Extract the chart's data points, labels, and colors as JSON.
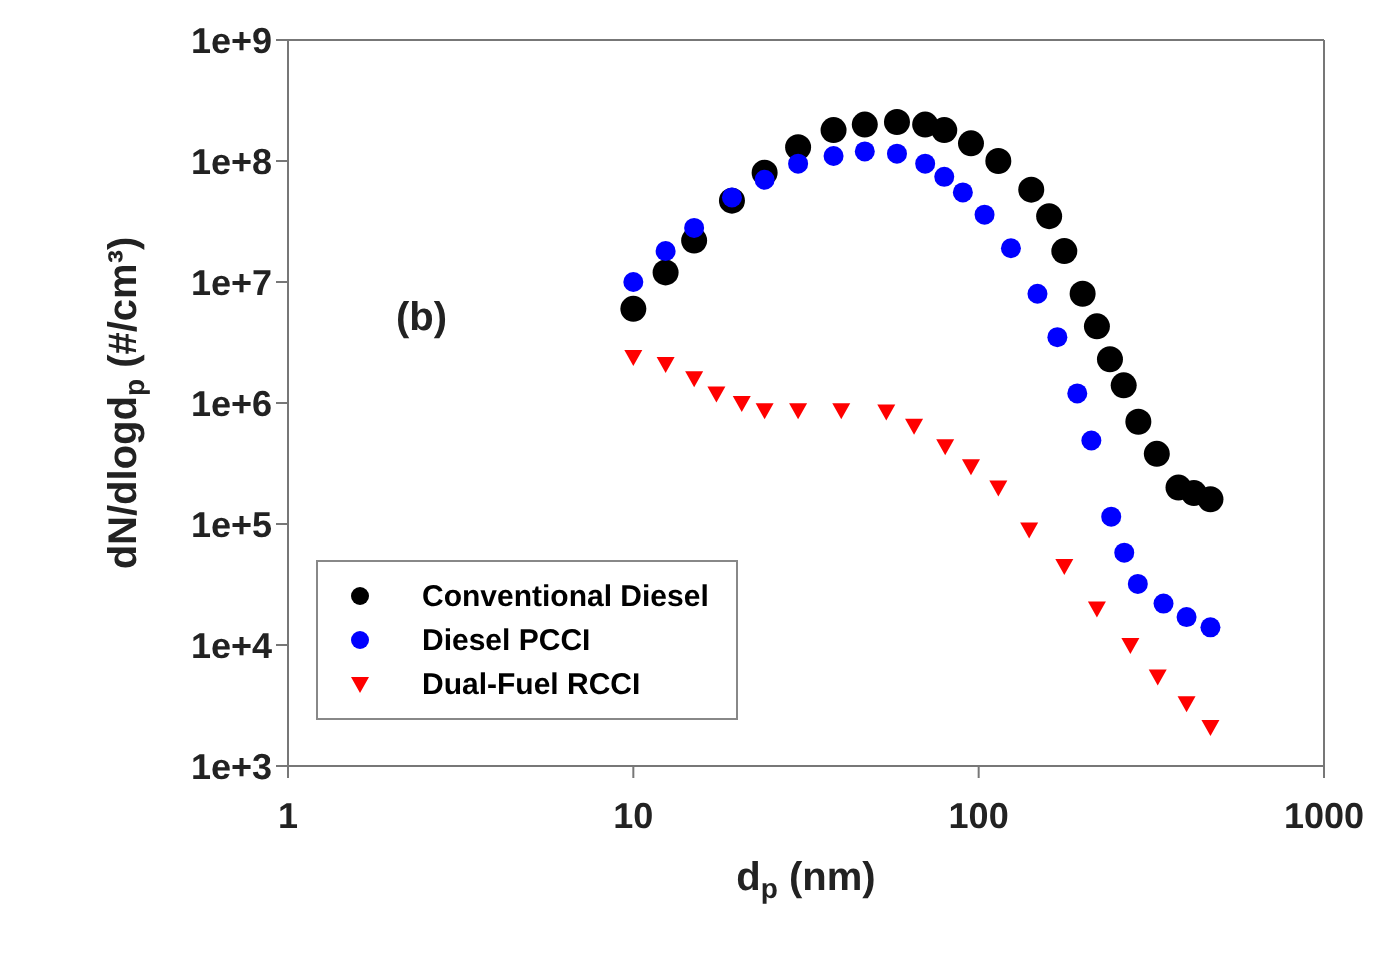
{
  "chart_data": {
    "type": "scatter",
    "xlabel": "d$_{p}$ (nm)",
    "ylabel": "dN/dlogd$_{p}$ (#/cm³)",
    "annotations": [
      "(b)"
    ],
    "log": "xy",
    "xlim": [
      1,
      1000
    ],
    "xticks": [
      1,
      10,
      100,
      1000
    ],
    "ylim": [
      1000,
      1000000000
    ],
    "yticks": [
      {
        "value": 1000,
        "label": "1e+3"
      },
      {
        "value": 10000,
        "label": "1e+4"
      },
      {
        "value": 100000,
        "label": "1e+5"
      },
      {
        "value": 1000000,
        "label": "1e+6"
      },
      {
        "value": 10000000,
        "label": "1e+7"
      },
      {
        "value": 100000000,
        "label": "1e+8"
      },
      {
        "value": 1000000000,
        "label": "1e+9"
      }
    ],
    "grid": false,
    "legend": "bottom left",
    "series": [
      {
        "name": "Conventional Diesel",
        "color": "#000000",
        "marker": "circle",
        "x": [
          10,
          12.4,
          15,
          19.3,
          24,
          30,
          38,
          46.8,
          58,
          70,
          79.5,
          95,
          114,
          142,
          160,
          177,
          200,
          220,
          240,
          263,
          290,
          328,
          379,
          420,
          469
        ],
        "values": [
          6000000,
          12000000,
          22000000,
          47000000,
          80000000,
          130000000,
          180000000,
          200000000,
          210000000,
          200000000,
          180000000,
          140000000,
          100000000,
          58000000,
          35000000,
          18000000,
          8000000,
          4300000,
          2300000,
          1400000,
          700000,
          380000,
          200000,
          180000,
          160000
        ]
      },
      {
        "name": "Diesel PCCI",
        "color": "#0000ff",
        "marker": "circle",
        "x": [
          10,
          12.4,
          15,
          19.3,
          24,
          30,
          38,
          46.8,
          58,
          70,
          79.5,
          90,
          104,
          124,
          148,
          169,
          193,
          212,
          242,
          264,
          289,
          343,
          400,
          469
        ],
        "values": [
          10000000,
          18000000,
          28000000,
          50000000,
          70000000,
          95000000,
          110000000,
          120000000,
          115000000,
          95000000,
          74000000,
          55000000,
          36000000,
          19000000,
          8000000,
          3500000,
          1200000,
          490000,
          115000,
          58000,
          32000,
          22000,
          17000,
          14000
        ]
      },
      {
        "name": "Dual-Fuel RCCI",
        "color": "#ff0000",
        "marker": "triangle",
        "x": [
          10,
          12.4,
          15,
          17.4,
          20.6,
          24,
          30,
          40,
          54,
          65,
          80,
          95,
          114,
          140,
          177,
          220,
          275,
          330,
          400,
          469
        ],
        "values": [
          2400000,
          2100000,
          1600000,
          1200000,
          1000000,
          870000,
          870000,
          870000,
          850000,
          650000,
          440000,
          300000,
          200000,
          90000,
          45000,
          20000,
          10000,
          5500,
          3300,
          2100
        ]
      }
    ]
  }
}
